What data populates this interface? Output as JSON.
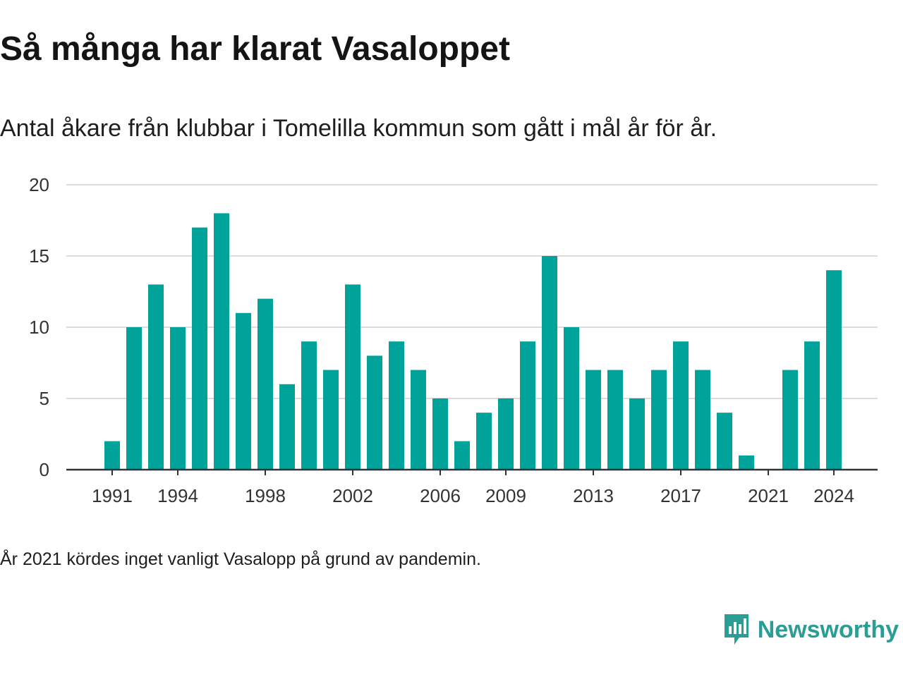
{
  "header": {
    "title": "Så många har klarat Vasaloppet",
    "subtitle": "Antal åkare från klubbar i Tomelilla kommun som gått i mål år för år."
  },
  "footnote": "År 2021 kördes inget vanligt Vasalopp på grund av pandemin.",
  "brand": {
    "name": "Newsworthy",
    "color": "#2a9d94"
  },
  "colors": {
    "bar": "#00a399",
    "grid": "#dcdcdc",
    "axis": "#333333"
  },
  "chart_data": {
    "type": "bar",
    "title": "Så många har klarat Vasaloppet",
    "subtitle": "Antal åkare från klubbar i Tomelilla kommun som gått i mål år för år.",
    "xlabel": "",
    "ylabel": "",
    "ylim": [
      0,
      20
    ],
    "yticks": [
      0,
      5,
      10,
      15,
      20
    ],
    "xtick_labels": [
      "1991",
      "1994",
      "1998",
      "2002",
      "2006",
      "2009",
      "2013",
      "2017",
      "2021",
      "2024"
    ],
    "grid": true,
    "legend": "none",
    "categories": [
      1991,
      1992,
      1993,
      1994,
      1995,
      1996,
      1997,
      1998,
      1999,
      2000,
      2001,
      2002,
      2003,
      2004,
      2005,
      2006,
      2007,
      2008,
      2009,
      2010,
      2011,
      2012,
      2013,
      2014,
      2015,
      2016,
      2017,
      2018,
      2019,
      2020,
      2021,
      2022,
      2023,
      2024
    ],
    "values": [
      2,
      10,
      13,
      10,
      17,
      18,
      11,
      12,
      6,
      9,
      7,
      13,
      8,
      9,
      7,
      5,
      2,
      4,
      5,
      9,
      15,
      10,
      7,
      7,
      5,
      7,
      9,
      7,
      4,
      1,
      0,
      7,
      9,
      14
    ]
  }
}
